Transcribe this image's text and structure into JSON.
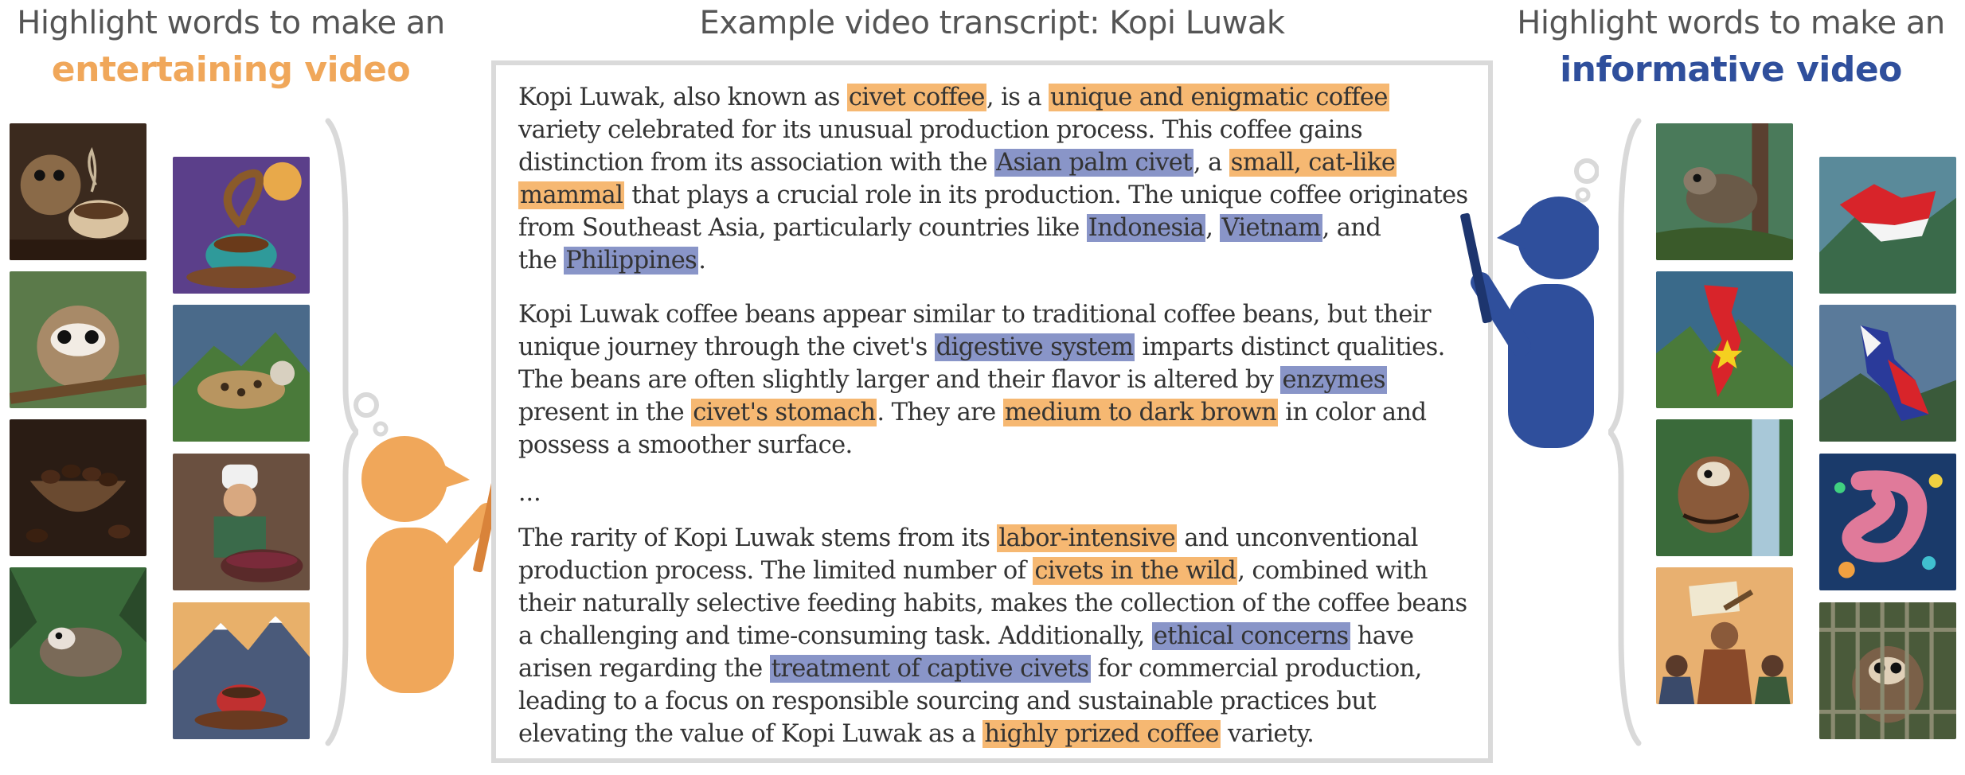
{
  "left": {
    "heading_line1": "Highlight words to make an",
    "heading_line2": "entertaining video",
    "accent_color": "#f0a75a",
    "images": [
      {
        "icon": "civet-with-coffee-cup-image"
      },
      {
        "icon": "swirling-coffee-cup-image"
      },
      {
        "icon": "civet-on-branch-image"
      },
      {
        "icon": "spotted-civet-image"
      },
      {
        "icon": "coffee-beans-bowl-image"
      },
      {
        "icon": "chef-roasting-beans-image"
      },
      {
        "icon": "civet-in-jungle-image"
      },
      {
        "icon": "coffee-cup-mountains-image"
      }
    ]
  },
  "center": {
    "title": "Example video transcript: Kopi Luwak",
    "ellipsis": "...",
    "paragraphs": [
      [
        [
          {
            "t": "Kopi Luwak, also known as "
          },
          {
            "t": "civet coffee",
            "h": "o"
          },
          {
            "t": ", is a "
          },
          {
            "t": "unique and enigmatic coffee",
            "h": "o"
          }
        ],
        [
          {
            "t": "variety celebrated for its unusual production process. This coffee gains"
          }
        ],
        [
          {
            "t": "distinction from its association with the "
          },
          {
            "t": "Asian palm civet",
            "h": "b"
          },
          {
            "t": ", a "
          },
          {
            "t": "small, cat-like",
            "h": "o"
          }
        ],
        [
          {
            "t": "mammal",
            "h": "o"
          },
          {
            "t": " that plays a crucial role in its production. The unique coffee originates"
          }
        ],
        [
          {
            "t": "from Southeast Asia, particularly countries like "
          },
          {
            "t": "Indonesia",
            "h": "b"
          },
          {
            "t": ", "
          },
          {
            "t": "Vietnam",
            "h": "b"
          },
          {
            "t": ", and"
          }
        ],
        [
          {
            "t": "the "
          },
          {
            "t": "Philippines",
            "h": "b"
          },
          {
            "t": "."
          }
        ]
      ],
      [
        [
          {
            "t": "Kopi Luwak coffee beans appear similar to traditional coffee beans, but their"
          }
        ],
        [
          {
            "t": "unique journey through the civet's "
          },
          {
            "t": "digestive system",
            "h": "b"
          },
          {
            "t": " imparts distinct qualities."
          }
        ],
        [
          {
            "t": "The beans are often slightly larger and their flavor is altered by "
          },
          {
            "t": "enzymes",
            "h": "b"
          }
        ],
        [
          {
            "t": "present in the "
          },
          {
            "t": "civet's stomach",
            "h": "o"
          },
          {
            "t": ". They are "
          },
          {
            "t": "medium to dark brown",
            "h": "o"
          },
          {
            "t": " in color and"
          }
        ],
        [
          {
            "t": "possess a smoother surface."
          }
        ]
      ],
      [
        [
          {
            "t": "The rarity of Kopi Luwak stems from its "
          },
          {
            "t": "labor-intensive",
            "h": "o"
          },
          {
            "t": " and unconventional"
          }
        ],
        [
          {
            "t": "production process. The limited number of "
          },
          {
            "t": "civets in the wild",
            "h": "o"
          },
          {
            "t": ", combined with"
          }
        ],
        [
          {
            "t": "their naturally selective feeding habits, makes the collection of the coffee beans"
          }
        ],
        [
          {
            "t": "a challenging and time-consuming task. Additionally, "
          },
          {
            "t": "ethical concerns",
            "h": "b"
          },
          {
            "t": " have"
          }
        ],
        [
          {
            "t": "arisen regarding the "
          },
          {
            "t": "treatment of captive civets",
            "h": "b"
          },
          {
            "t": " for commercial production,"
          }
        ],
        [
          {
            "t": "leading to a focus on responsible sourcing and sustainable practices but"
          }
        ],
        [
          {
            "t": "elevating the value of Kopi Luwak as a "
          },
          {
            "t": "highly prized coffee",
            "h": "o"
          },
          {
            "t": " variety."
          }
        ]
      ]
    ]
  },
  "right": {
    "heading_line1": "Highlight words to make an",
    "heading_line2": "informative video",
    "accent_color": "#2f4f9c",
    "images": [
      {
        "icon": "palm-civet-on-tree-image"
      },
      {
        "icon": "indonesia-map-flag-image"
      },
      {
        "icon": "vietnam-map-flag-image"
      },
      {
        "icon": "philippines-map-flag-image"
      },
      {
        "icon": "civet-by-waterfall-image"
      },
      {
        "icon": "digestive-system-enzymes-image"
      },
      {
        "icon": "protest-crowd-image"
      },
      {
        "icon": "caged-civet-image"
      }
    ]
  },
  "colors": {
    "orange_highlight": "#f6b872",
    "blue_highlight": "#8995c8",
    "brace": "#d9d9d9",
    "box_border": "#dadada"
  }
}
